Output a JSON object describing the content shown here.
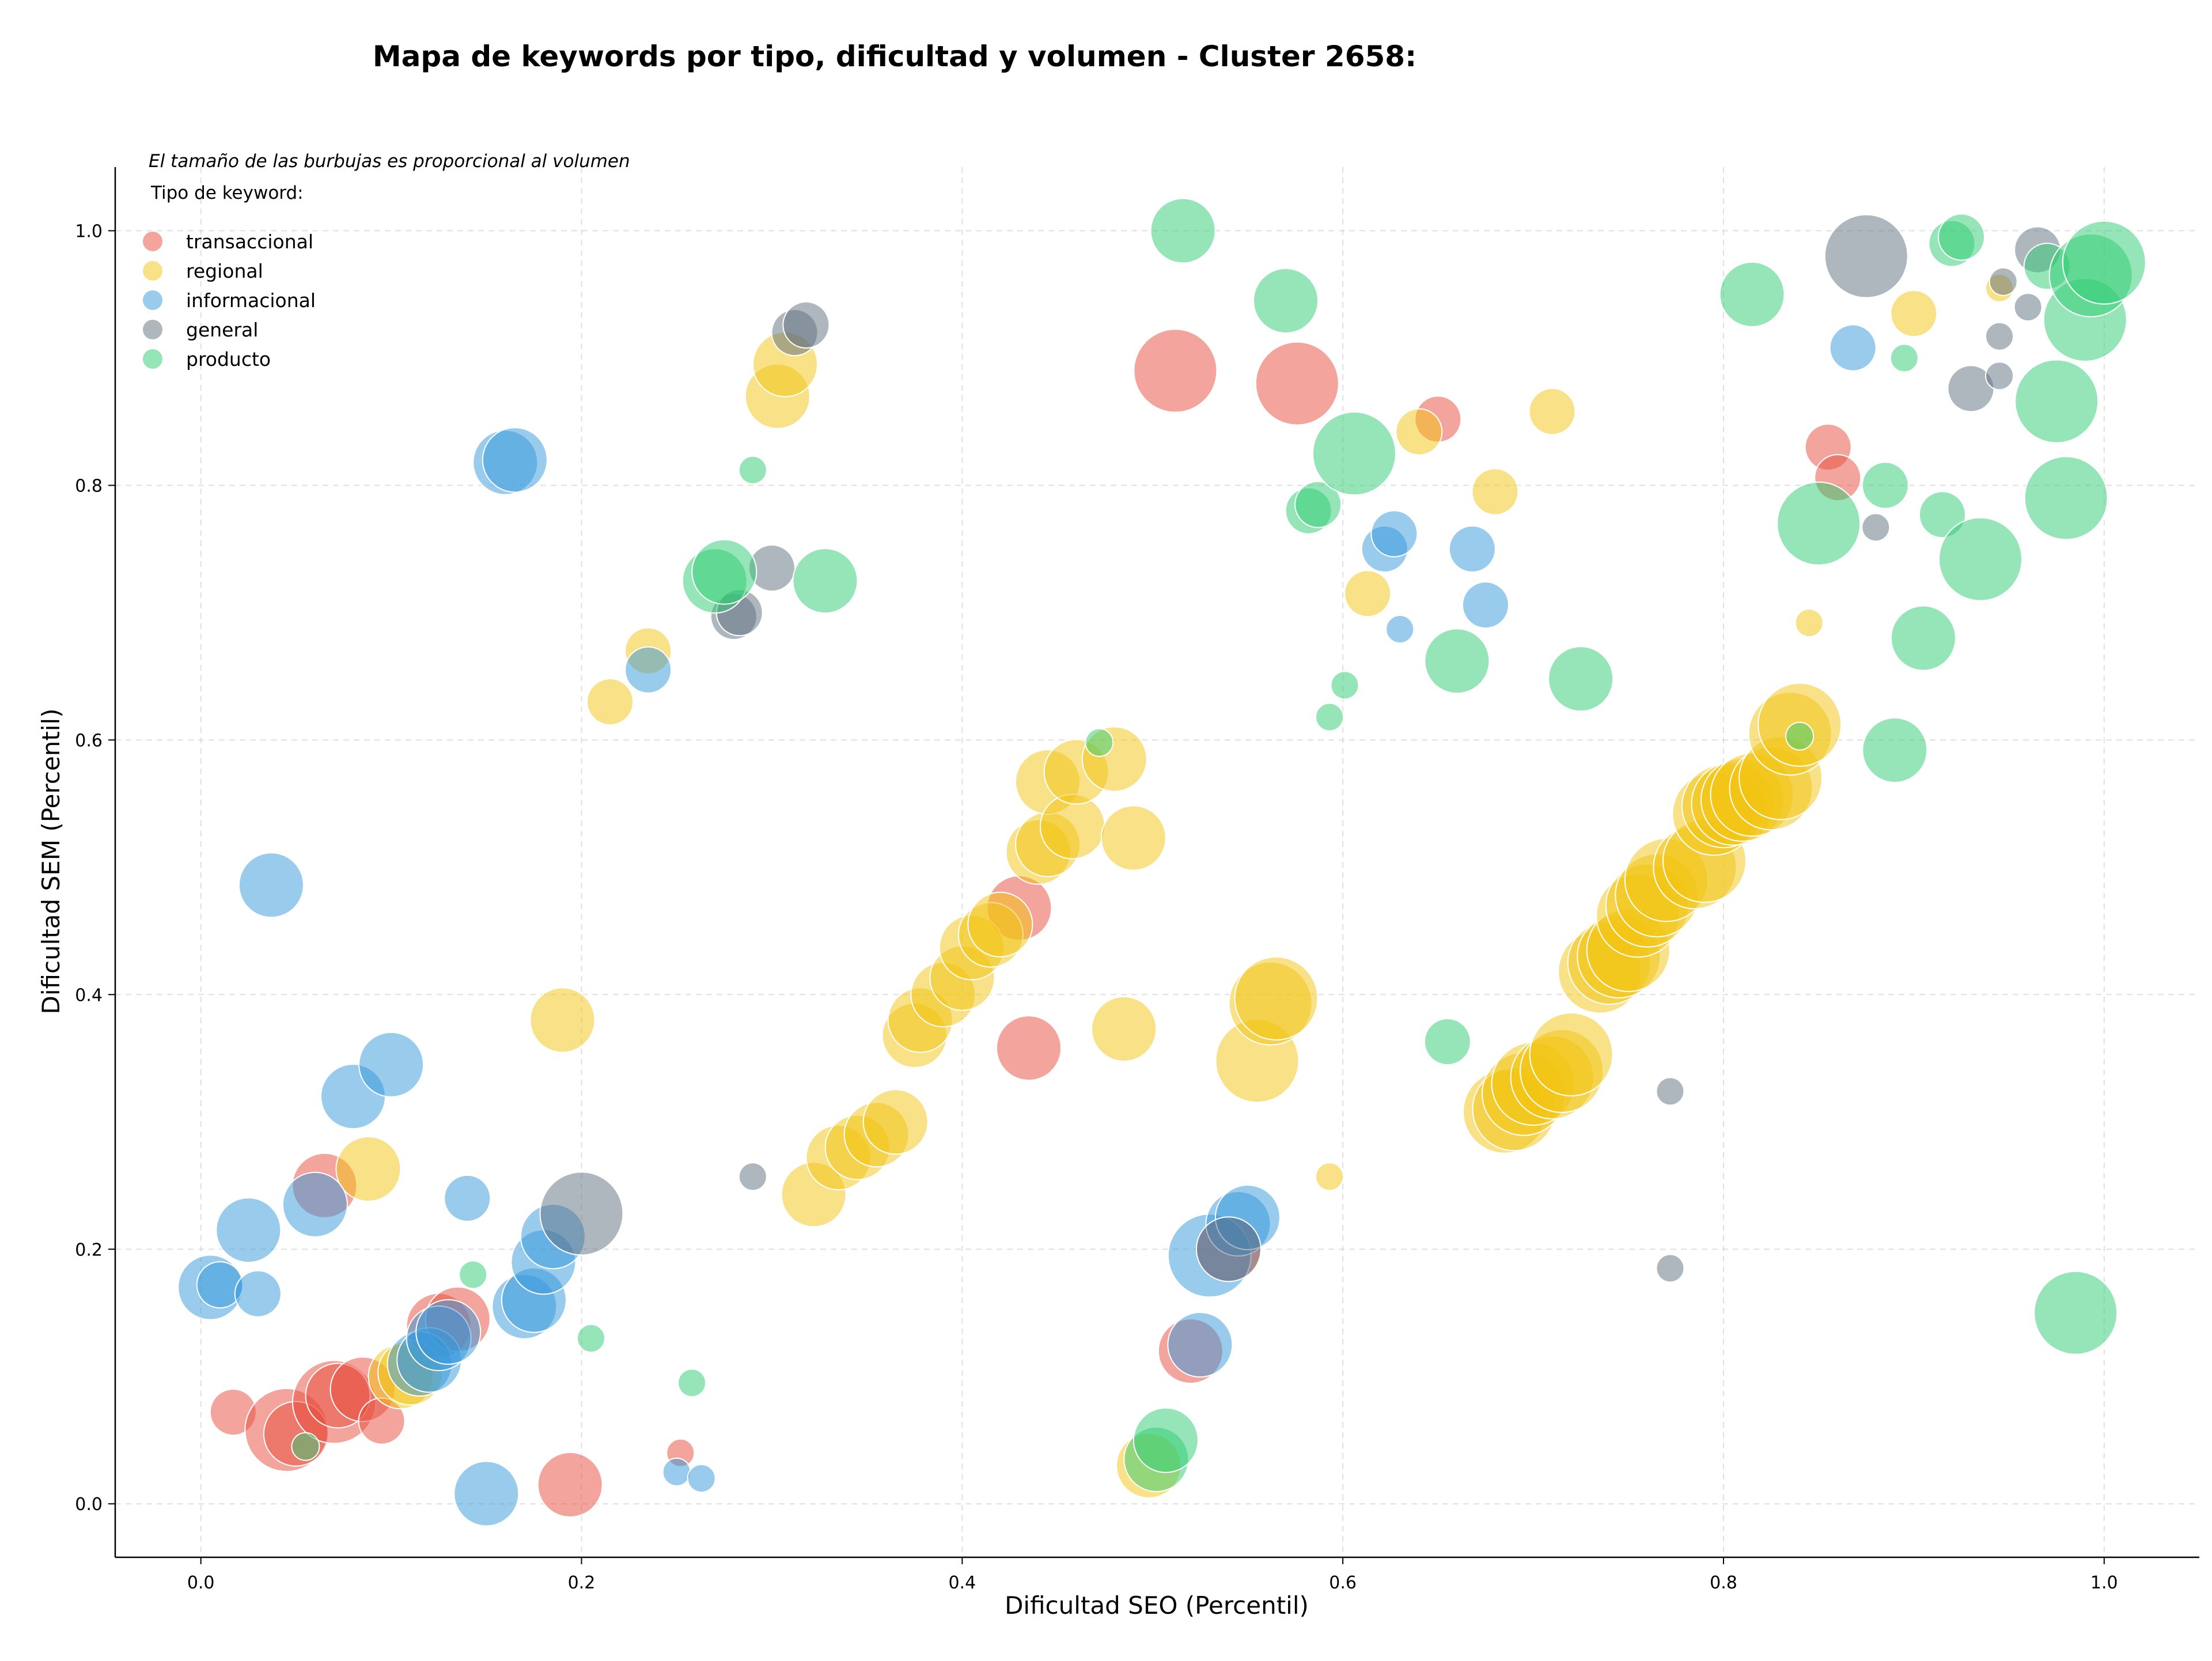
{
  "chart_data": {
    "type": "scatter",
    "title": "Mapa de keywords por tipo, dificultad y volumen - Cluster 2658:",
    "xlabel": "Dificultad SEO (Percentil)",
    "ylabel": "Dificultad SEM (Percentil)",
    "xlim": [
      -0.045,
      1.05
    ],
    "ylim": [
      -0.042,
      1.05
    ],
    "xticks": [
      "0.0",
      "0.2",
      "0.4",
      "0.6",
      "0.8",
      "1.0"
    ],
    "yticks": [
      "0.0",
      "0.2",
      "0.4",
      "0.6",
      "0.8",
      "1.0"
    ],
    "grid": true,
    "legend_placement": "top-left",
    "size_note": "El tamaño de las burbujas es proporcional al volumen",
    "legend_title": "Tipo de keyword:",
    "series": [
      {
        "name": "transaccional",
        "color": "#e74c3c",
        "points": [
          [
            0.017,
            0.072,
            2
          ],
          [
            0.045,
            0.058,
            4
          ],
          [
            0.05,
            0.055,
            3
          ],
          [
            0.065,
            0.25,
            3
          ],
          [
            0.07,
            0.08,
            4
          ],
          [
            0.072,
            0.085,
            3
          ],
          [
            0.085,
            0.09,
            3
          ],
          [
            0.095,
            0.065,
            2
          ],
          [
            0.125,
            0.14,
            3
          ],
          [
            0.135,
            0.145,
            3
          ],
          [
            0.194,
            0.015,
            3
          ],
          [
            0.43,
            0.468,
            3
          ],
          [
            0.435,
            0.358,
            3
          ],
          [
            0.512,
            0.89,
            4
          ],
          [
            0.52,
            0.12,
            3
          ],
          [
            0.54,
            0.2,
            3
          ],
          [
            0.576,
            0.88,
            4
          ],
          [
            0.65,
            0.852,
            2
          ],
          [
            0.855,
            0.83,
            2
          ],
          [
            0.86,
            0.806,
            2
          ],
          [
            0.252,
            0.04,
            1
          ]
        ]
      },
      {
        "name": "regional",
        "color": "#f1c40f",
        "points": [
          [
            0.088,
            0.263,
            3
          ],
          [
            0.105,
            0.1,
            3
          ],
          [
            0.11,
            0.103,
            3
          ],
          [
            0.19,
            0.38,
            3
          ],
          [
            0.215,
            0.63,
            2
          ],
          [
            0.235,
            0.67,
            2
          ],
          [
            0.303,
            0.87,
            3
          ],
          [
            0.307,
            0.895,
            3
          ],
          [
            0.322,
            0.243,
            3
          ],
          [
            0.335,
            0.272,
            3
          ],
          [
            0.345,
            0.28,
            3
          ],
          [
            0.355,
            0.29,
            3
          ],
          [
            0.365,
            0.3,
            3
          ],
          [
            0.375,
            0.368,
            3
          ],
          [
            0.378,
            0.38,
            3
          ],
          [
            0.39,
            0.4,
            3
          ],
          [
            0.4,
            0.413,
            3
          ],
          [
            0.405,
            0.437,
            3
          ],
          [
            0.415,
            0.447,
            3
          ],
          [
            0.42,
            0.455,
            3
          ],
          [
            0.44,
            0.512,
            3
          ],
          [
            0.445,
            0.518,
            3
          ],
          [
            0.445,
            0.567,
            3
          ],
          [
            0.458,
            0.532,
            3
          ],
          [
            0.46,
            0.575,
            3
          ],
          [
            0.48,
            0.585,
            3
          ],
          [
            0.485,
            0.373,
            3
          ],
          [
            0.49,
            0.523,
            3
          ],
          [
            0.498,
            0.03,
            3
          ],
          [
            0.555,
            0.348,
            4
          ],
          [
            0.562,
            0.393,
            4
          ],
          [
            0.565,
            0.397,
            4
          ],
          [
            0.593,
            0.257,
            1
          ],
          [
            0.613,
            0.715,
            2
          ],
          [
            0.64,
            0.842,
            2
          ],
          [
            0.68,
            0.795,
            2
          ],
          [
            0.71,
            0.858,
            2
          ],
          [
            0.685,
            0.308,
            4
          ],
          [
            0.69,
            0.31,
            4
          ],
          [
            0.695,
            0.322,
            4
          ],
          [
            0.7,
            0.33,
            4
          ],
          [
            0.71,
            0.335,
            4
          ],
          [
            0.715,
            0.34,
            4
          ],
          [
            0.72,
            0.353,
            4
          ],
          [
            0.735,
            0.418,
            4
          ],
          [
            0.74,
            0.425,
            4
          ],
          [
            0.745,
            0.43,
            4
          ],
          [
            0.75,
            0.435,
            4
          ],
          [
            0.755,
            0.462,
            4
          ],
          [
            0.76,
            0.47,
            4
          ],
          [
            0.765,
            0.478,
            4
          ],
          [
            0.77,
            0.49,
            4
          ],
          [
            0.785,
            0.5,
            4
          ],
          [
            0.79,
            0.505,
            4
          ],
          [
            0.795,
            0.542,
            4
          ],
          [
            0.8,
            0.548,
            4
          ],
          [
            0.805,
            0.55,
            4
          ],
          [
            0.81,
            0.553,
            4
          ],
          [
            0.815,
            0.557,
            4
          ],
          [
            0.825,
            0.562,
            4
          ],
          [
            0.83,
            0.57,
            4
          ],
          [
            0.835,
            0.605,
            4
          ],
          [
            0.84,
            0.612,
            4
          ],
          [
            0.845,
            0.692,
            1
          ],
          [
            0.9,
            0.935,
            2
          ],
          [
            0.945,
            0.955,
            1
          ]
        ]
      },
      {
        "name": "informacional",
        "color": "#3498db",
        "points": [
          [
            0.005,
            0.17,
            3
          ],
          [
            0.01,
            0.172,
            2
          ],
          [
            0.025,
            0.215,
            3
          ],
          [
            0.03,
            0.165,
            2
          ],
          [
            0.037,
            0.486,
            3
          ],
          [
            0.06,
            0.235,
            3
          ],
          [
            0.08,
            0.32,
            3
          ],
          [
            0.1,
            0.345,
            3
          ],
          [
            0.115,
            0.11,
            3
          ],
          [
            0.12,
            0.113,
            3
          ],
          [
            0.125,
            0.13,
            3
          ],
          [
            0.13,
            0.135,
            3
          ],
          [
            0.14,
            0.24,
            2
          ],
          [
            0.15,
            0.008,
            3
          ],
          [
            0.16,
            0.818,
            3
          ],
          [
            0.165,
            0.82,
            3
          ],
          [
            0.17,
            0.155,
            3
          ],
          [
            0.175,
            0.16,
            3
          ],
          [
            0.18,
            0.19,
            3
          ],
          [
            0.185,
            0.21,
            3
          ],
          [
            0.235,
            0.655,
            2
          ],
          [
            0.25,
            0.025,
            1
          ],
          [
            0.263,
            0.02,
            1
          ],
          [
            0.53,
            0.195,
            4
          ],
          [
            0.525,
            0.125,
            3
          ],
          [
            0.545,
            0.22,
            3
          ],
          [
            0.55,
            0.225,
            3
          ],
          [
            0.622,
            0.75,
            2
          ],
          [
            0.627,
            0.762,
            2
          ],
          [
            0.63,
            0.687,
            1
          ],
          [
            0.668,
            0.75,
            2
          ],
          [
            0.675,
            0.706,
            2
          ],
          [
            0.868,
            0.908,
            2
          ]
        ]
      },
      {
        "name": "general",
        "color": "#5d6d7e",
        "points": [
          [
            0.2,
            0.228,
            4
          ],
          [
            0.29,
            0.257,
            1
          ],
          [
            0.3,
            0.735,
            2
          ],
          [
            0.28,
            0.697,
            2
          ],
          [
            0.283,
            0.7,
            2
          ],
          [
            0.312,
            0.92,
            2
          ],
          [
            0.318,
            0.926,
            2
          ],
          [
            0.54,
            0.2,
            3
          ],
          [
            0.772,
            0.324,
            1
          ],
          [
            0.772,
            0.185,
            1
          ],
          [
            0.875,
            0.98,
            4
          ],
          [
            0.88,
            0.767,
            1
          ],
          [
            0.93,
            0.876,
            2
          ],
          [
            0.945,
            0.917,
            1
          ],
          [
            0.945,
            0.886,
            1
          ],
          [
            0.947,
            0.96,
            1
          ],
          [
            0.96,
            0.94,
            1
          ],
          [
            0.965,
            0.985,
            2
          ]
        ]
      },
      {
        "name": "producto",
        "color": "#2ecc71",
        "points": [
          [
            0.055,
            0.045,
            1
          ],
          [
            0.143,
            0.18,
            1
          ],
          [
            0.205,
            0.13,
            1
          ],
          [
            0.258,
            0.095,
            1
          ],
          [
            0.27,
            0.725,
            3
          ],
          [
            0.275,
            0.732,
            3
          ],
          [
            0.29,
            0.812,
            1
          ],
          [
            0.328,
            0.725,
            3
          ],
          [
            0.472,
            0.598,
            1
          ],
          [
            0.502,
            0.035,
            3
          ],
          [
            0.507,
            0.05,
            3
          ],
          [
            0.516,
            1.0,
            3
          ],
          [
            0.57,
            0.945,
            3
          ],
          [
            0.582,
            0.78,
            2
          ],
          [
            0.587,
            0.785,
            2
          ],
          [
            0.593,
            0.618,
            1
          ],
          [
            0.601,
            0.643,
            1
          ],
          [
            0.606,
            0.825,
            4
          ],
          [
            0.655,
            0.363,
            2
          ],
          [
            0.66,
            0.662,
            3
          ],
          [
            0.725,
            0.648,
            3
          ],
          [
            0.815,
            0.95,
            3
          ],
          [
            0.84,
            0.603,
            1
          ],
          [
            0.85,
            0.77,
            4
          ],
          [
            0.885,
            0.8,
            2
          ],
          [
            0.89,
            0.592,
            3
          ],
          [
            0.895,
            0.9,
            1
          ],
          [
            0.905,
            0.68,
            3
          ],
          [
            0.915,
            0.777,
            2
          ],
          [
            0.92,
            0.99,
            2
          ],
          [
            0.925,
            0.995,
            2
          ],
          [
            0.935,
            0.742,
            4
          ],
          [
            0.97,
            0.972,
            2
          ],
          [
            0.975,
            0.866,
            4
          ],
          [
            0.98,
            0.79,
            4
          ],
          [
            0.985,
            0.15,
            4
          ],
          [
            0.99,
            0.93,
            4
          ],
          [
            0.993,
            0.965,
            4
          ],
          [
            1.0,
            0.975,
            4
          ]
        ]
      }
    ]
  }
}
